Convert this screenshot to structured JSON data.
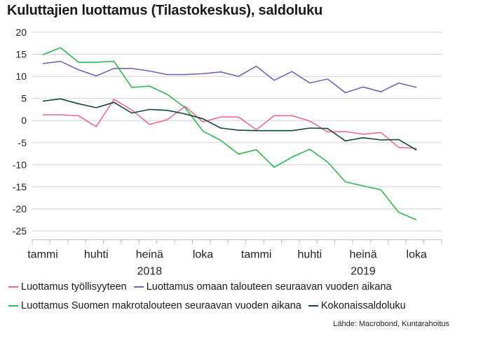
{
  "chart_data": {
    "type": "line",
    "title": "Kuluttajien luottamus (Tilastokeskus), saldoluku",
    "ylim": [
      -27,
      20
    ],
    "yticks": [
      20,
      15,
      10,
      5,
      0,
      -5,
      -10,
      -15,
      -20,
      -25
    ],
    "grid": true,
    "month_ticks": [
      {
        "label": "tammi",
        "index": 0
      },
      {
        "label": "huhti",
        "index": 3
      },
      {
        "label": "heinä",
        "index": 6
      },
      {
        "label": "loka",
        "index": 9
      },
      {
        "label": "tammi",
        "index": 12
      },
      {
        "label": "huhti",
        "index": 15
      },
      {
        "label": "heinä",
        "index": 18
      },
      {
        "label": "loka",
        "index": 21
      }
    ],
    "years": [
      {
        "label": "2018",
        "index": 6
      },
      {
        "label": "2019",
        "index": 18
      }
    ],
    "x": [
      "2018-01",
      "2018-02",
      "2018-03",
      "2018-04",
      "2018-05",
      "2018-06",
      "2018-07",
      "2018-08",
      "2018-09",
      "2018-10",
      "2018-11",
      "2018-12",
      "2019-01",
      "2019-02",
      "2019-03",
      "2019-04",
      "2019-05",
      "2019-06",
      "2019-07",
      "2019-08",
      "2019-09",
      "2019-10",
      "2019-11"
    ],
    "series": [
      {
        "name": "Luottamus työllisyyteen",
        "color": "#f06a8a",
        "values": [
          1.3,
          1.3,
          1.1,
          -1.4,
          4.8,
          2.4,
          -0.9,
          0.2,
          3.2,
          -0.3,
          0.8,
          0.8,
          -2.1,
          1.1,
          1.1,
          -0.1,
          -2.6,
          -2.5,
          -3.1,
          -2.7,
          -6.1,
          -6.3,
          null
        ]
      },
      {
        "name": "Luottamus omaan talouteen seuraavan vuoden aikana",
        "color": "#7b5fb5",
        "values": [
          12.9,
          13.4,
          11.5,
          10.1,
          11.8,
          11.8,
          11.2,
          10.4,
          10.4,
          10.6,
          11.0,
          10.0,
          12.3,
          9.1,
          11.1,
          8.5,
          9.4,
          6.3,
          7.6,
          6.5,
          8.5,
          7.5,
          null
        ]
      },
      {
        "name": "Luottamus Suomen makrotalouteen seuraavan vuoden aikana",
        "color": "#2db84d",
        "values": [
          14.9,
          16.5,
          13.2,
          13.2,
          13.4,
          7.5,
          7.8,
          5.9,
          2.9,
          -2.4,
          -4.5,
          -7.6,
          -6.6,
          -10.6,
          -8.3,
          -6.5,
          -9.4,
          -13.9,
          -14.8,
          -15.7,
          -20.8,
          -22.5,
          null
        ]
      },
      {
        "name": "Kokonaissaldoluku",
        "color": "#0f4a32",
        "values": [
          4.4,
          4.9,
          3.8,
          2.9,
          4.1,
          1.7,
          2.5,
          2.3,
          1.5,
          0.4,
          -1.7,
          -2.2,
          -2.3,
          -2.3,
          -2.3,
          -1.7,
          -1.8,
          -4.6,
          -3.9,
          -4.4,
          -4.3,
          -6.7,
          null
        ]
      }
    ]
  },
  "source": "Lähde: Macrobond, Kuntarahoitus"
}
